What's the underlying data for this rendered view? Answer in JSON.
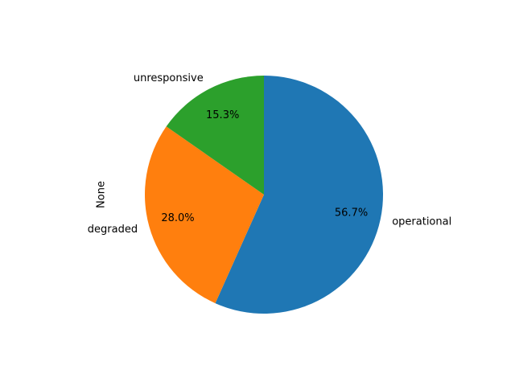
{
  "chart_data": {
    "type": "pie",
    "ylabel": "None",
    "slices": [
      {
        "label": "operational",
        "value": 56.7,
        "pct_label": "56.7%",
        "color": "#1f77b4"
      },
      {
        "label": "degraded",
        "value": 28.0,
        "pct_label": "28.0%",
        "color": "#ff7f0e"
      },
      {
        "label": "unresponsive",
        "value": 15.3,
        "pct_label": "15.3%",
        "color": "#2ca02c"
      }
    ],
    "start_angle_deg": 90,
    "direction": "clockwise"
  }
}
